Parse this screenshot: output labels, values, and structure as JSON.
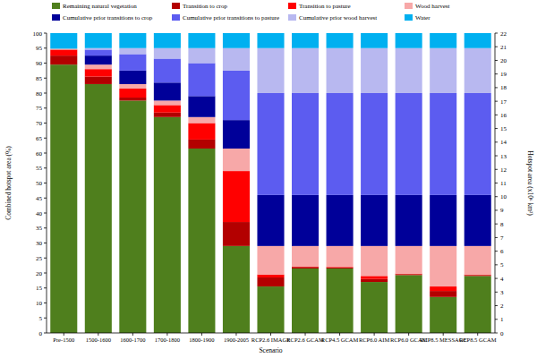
{
  "chart_data": {
    "type": "bar",
    "stacked": true,
    "legend": "top",
    "x_label": "Scenario",
    "y_label": "Combined hotspot area (%)",
    "y2_label": "Hotspot area (x10⁶ km²)",
    "categories": [
      "Pre-1500",
      "1500-1600",
      "1600-1700",
      "1700-1800",
      "1800-1900",
      "1900-2005",
      "RCP2.6 IMAGE",
      "RCP2.6 GCAM",
      "RCP4.5 GCAM",
      "RCP6.0 AIM",
      "RCP6.0 GCAM",
      "RCP8.5 MESSAGE",
      "RCP8.5 GCAM"
    ],
    "series": [
      {
        "name": "Remaining natural vegetation",
        "color": "#4f7f1d",
        "values": [
          89.5,
          83,
          77.5,
          72,
          61.5,
          29,
          15.5,
          21.5,
          21.5,
          17,
          19.3,
          12,
          19
        ]
      },
      {
        "name": "Transition to crop",
        "color": "#b30000",
        "values": [
          3,
          2.5,
          1,
          1.5,
          3,
          8,
          3,
          0.5,
          0.3,
          1,
          0.3,
          2,
          0.3
        ]
      },
      {
        "name": "Transition to pasture",
        "color": "#ff0000",
        "values": [
          2,
          2.5,
          3,
          2.5,
          5.5,
          17,
          1,
          0.2,
          0.2,
          1,
          0.2,
          1.5,
          0.2
        ]
      },
      {
        "name": "Wood harvest",
        "color": "#f7a8a8",
        "values": [
          0.3,
          1.5,
          1.5,
          1.5,
          2,
          7.5,
          9.5,
          6.8,
          7,
          10,
          9.2,
          13.5,
          9.5
        ]
      },
      {
        "name": "Cumulative prior transitions to crop",
        "color": "#000099",
        "values": [
          0,
          3,
          4.5,
          6,
          7,
          9.5,
          17,
          17,
          17,
          17,
          17,
          17,
          17
        ]
      },
      {
        "name": "Cumulative prior transitions to pasture",
        "color": "#5c5cf0",
        "values": [
          0,
          2,
          5.5,
          8,
          11,
          16.5,
          34,
          34,
          34,
          34,
          34,
          34,
          34
        ]
      },
      {
        "name": "Cumulative prior wood harvest",
        "color": "#b8b8f0",
        "values": [
          0,
          0.5,
          2,
          3.5,
          5,
          7.5,
          15,
          15,
          15,
          15,
          15,
          15,
          15
        ]
      },
      {
        "name": "Water",
        "color": "#00b0f0",
        "values": [
          5.2,
          5,
          5,
          5,
          5,
          5,
          5,
          5,
          5,
          5,
          5,
          5,
          5
        ]
      }
    ],
    "ylim": [
      0,
      100
    ],
    "yticks": [
      0,
      5,
      10,
      15,
      20,
      25,
      30,
      35,
      40,
      45,
      50,
      55,
      60,
      65,
      70,
      75,
      80,
      85,
      90,
      95,
      100
    ],
    "y2lim": [
      0,
      22
    ],
    "y2ticks": [
      0,
      1,
      2,
      3,
      4,
      5,
      6,
      7,
      8,
      9,
      10,
      11,
      12,
      13,
      14,
      15,
      16,
      17,
      18,
      19,
      20,
      21,
      22
    ],
    "grid": false
  }
}
